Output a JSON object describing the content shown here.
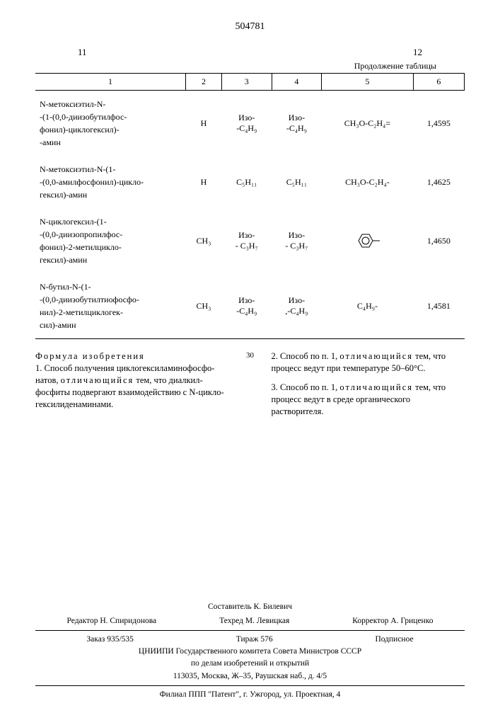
{
  "patent_number": "504781",
  "page_left": "11",
  "page_right": "12",
  "continuation": "Продолжение таблицы",
  "header_cols": [
    "1",
    "2",
    "3",
    "4",
    "5",
    "6"
  ],
  "rows": [
    {
      "name": "N-метоксиэтил-N-\n-(1-(0,0-диизобутилфос-\nфонил)-циклогексил)-\n-амин",
      "c2": "H",
      "c3": "Изо-\n-C₄H₉",
      "c4": "Изо-\n-C₄H₉",
      "c5": "CH₃O-C₂H₄=",
      "c6": "1,4595"
    },
    {
      "name": "N-метоксиэтил-N-(1-\n-(0,0-амилфосфонил)-цикло-\nгексил)-амин",
      "c2": "H",
      "c3": "C₅H₁₁",
      "c4": "C₅H₁₁",
      "c5": "CH₃O-C₂H₄-",
      "c6": "1,4625"
    },
    {
      "name": "N-циклогексил-(1-\n-(0,0-диизопропилфос-\nфонил)-2-метилцикло-\nгексил)-амин",
      "c2": "CH₃",
      "c3": "Изо-\n- C₃H₇",
      "c4": "Изо-\n- C₃H₇",
      "c5": "__BENZENE__",
      "c6": "1,4650"
    },
    {
      "name": "N-бутил-N-(1-\n-(0,0-диизобутилтиофосфо-\nнил)-2-метилциклогек-\nсил)-амин",
      "c2": "CH₃",
      "c3": "Изо-\n-C₄H₉",
      "c4": "Изо-\n,-C₄H₉",
      "c5": "C₄H₉-",
      "c6": "1,4581"
    }
  ],
  "line_num": "30",
  "claims_title": "Формула изобретения",
  "claim1": "1. Способ получения циклогексиламинофосфо-\nнатов, отличающийся тем, что диалкил-\nфосфиты подвергают взаимодействию с N-цикло-\nгексилиденаминами.",
  "claim2": "2. Способ по п. 1, отличающийся тем, что процесс ведут при температуре 50–60°С.",
  "claim3": "3. Способ по п. 1, отличающийся тем, что процесс ведут в среде органического растворителя.",
  "footer": {
    "sost": "Составитель К. Билевич",
    "redaktor": "Редактор Н. Спиридонова",
    "tehred": "Техред М. Левицкая",
    "korrektor": "Корректор А. Гриценко",
    "zakaz": "Заказ 935/535",
    "tirazh": "Тираж 576",
    "podpisnoe": "Подписное",
    "org1": "ЦНИИПИ Государственного комитета Совета Министров СССР",
    "org2": "по делам изобретений и открытий",
    "addr1": "113035, Москва, Ж–35, Раушская наб., д. 4/5",
    "filial": "Филиал ППП \"Патент\", г. Ужгород, ул. Проектная, 4"
  }
}
